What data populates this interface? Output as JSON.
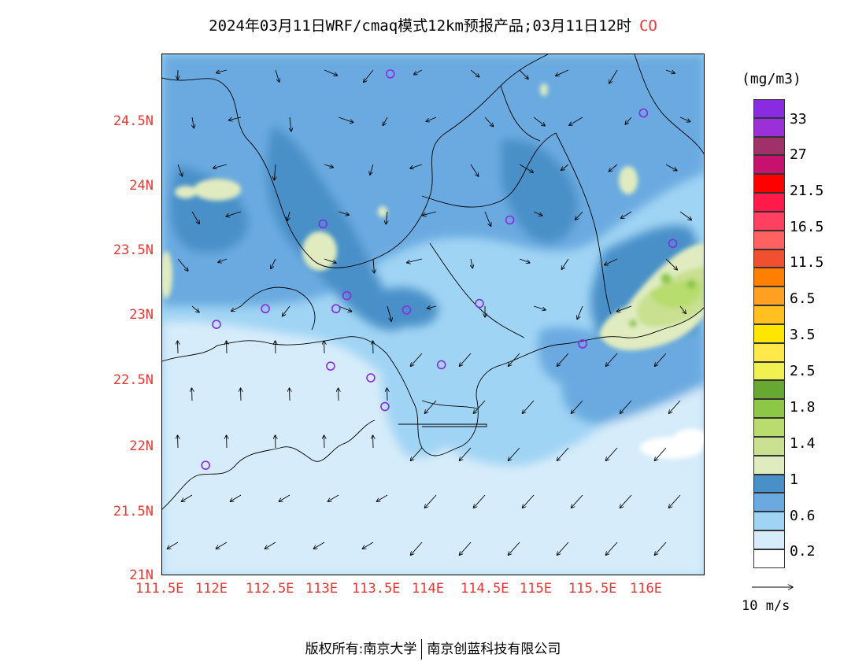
{
  "title": {
    "text": "2024年03月11日WRF/cmaq模式12km预报产品;03月11日12时",
    "species": "CO"
  },
  "axes": {
    "x_ticks": [
      "111.5E",
      "112E",
      "112.5E",
      "113E",
      "113.5E",
      "114E",
      "114.5E",
      "115E",
      "115.5E",
      "116E"
    ],
    "x_values": [
      111.5,
      112,
      112.5,
      113,
      113.5,
      114,
      114.5,
      115,
      115.5,
      116
    ],
    "y_ticks": [
      "24.5N",
      "24N",
      "23.5N",
      "23N",
      "22.5N",
      "22N",
      "21.5N",
      "21N"
    ],
    "y_values": [
      24.5,
      24,
      23.5,
      23,
      22.5,
      22,
      21.5,
      21
    ],
    "lon_range": [
      111.5,
      116.5
    ],
    "lat_range": [
      21,
      25
    ],
    "tick_color": "#e53935"
  },
  "legend": {
    "unit": "(mg/m3)",
    "labels": [
      "33",
      "27",
      "21.5",
      "16.5",
      "11.5",
      "6.5",
      "3.5",
      "2.5",
      "1.8",
      "1.4",
      "1",
      "0.6",
      "0.2"
    ],
    "colors": [
      "#8a2be2",
      "#9b30d9",
      "#a0306a",
      "#c8106e",
      "#ff0000",
      "#ff1a4a",
      "#ff4060",
      "#ff6060",
      "#f05030",
      "#ff8000",
      "#ffa020",
      "#ffc020",
      "#ffe600",
      "#ffe84a",
      "#f0f050",
      "#66a832",
      "#8cc846",
      "#b8dc6e",
      "#c8e090",
      "#e0ecc0",
      "#4a90c8",
      "#6aaae0",
      "#a0d4f4",
      "#d6ecfa",
      "#ffffff"
    ]
  },
  "wind_scale": {
    "label": "10 m/s"
  },
  "stations": [
    {
      "lon": 113.6,
      "lat": 24.85
    },
    {
      "lon": 115.93,
      "lat": 24.55
    },
    {
      "lon": 112.98,
      "lat": 23.7
    },
    {
      "lon": 114.7,
      "lat": 23.73
    },
    {
      "lon": 116.2,
      "lat": 23.55
    },
    {
      "lon": 113.2,
      "lat": 23.15
    },
    {
      "lon": 112.45,
      "lat": 23.05
    },
    {
      "lon": 113.1,
      "lat": 23.05
    },
    {
      "lon": 113.75,
      "lat": 23.04
    },
    {
      "lon": 114.42,
      "lat": 23.09
    },
    {
      "lon": 112.0,
      "lat": 22.93
    },
    {
      "lon": 115.37,
      "lat": 22.78
    },
    {
      "lon": 113.05,
      "lat": 22.61
    },
    {
      "lon": 114.07,
      "lat": 22.62
    },
    {
      "lon": 113.42,
      "lat": 22.52
    },
    {
      "lon": 113.55,
      "lat": 22.3
    },
    {
      "lon": 111.9,
      "lat": 21.85
    }
  ],
  "footer": {
    "left": "版权所有:南京大学",
    "right": "南京创蓝科技有限公司"
  }
}
